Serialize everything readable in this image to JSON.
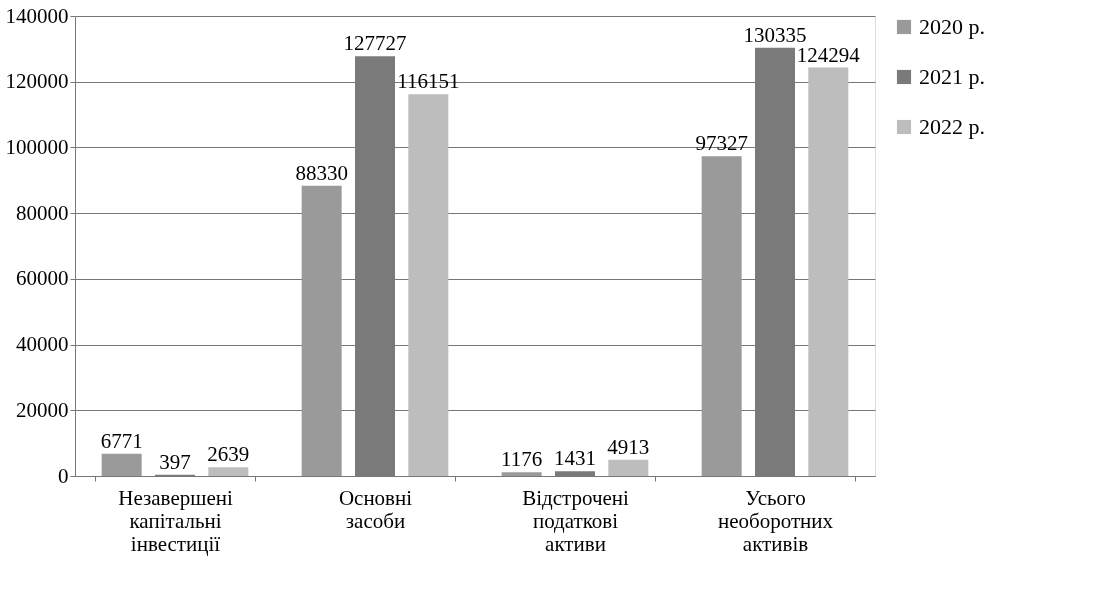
{
  "chart_data": {
    "type": "bar",
    "categories": [
      "Незавершені капітальні інвестиції",
      "Основні засоби",
      "Відстрочені податкові активи",
      "Усього необоротних активів"
    ],
    "series": [
      {
        "name": "2020 р.",
        "color": "#9a9a9a",
        "values": [
          6771,
          88330,
          1176,
          97327
        ]
      },
      {
        "name": "2021 р.",
        "color": "#7a7a7a",
        "values": [
          397,
          127727,
          1431,
          130335
        ]
      },
      {
        "name": "2022 р.",
        "color": "#bdbdbd",
        "values": [
          2639,
          116151,
          4913,
          124294
        ]
      }
    ],
    "ylim": [
      0,
      140000
    ],
    "yticks": [
      0,
      20000,
      40000,
      60000,
      80000,
      100000,
      120000,
      140000
    ],
    "grid": "y",
    "legend": "right",
    "data_labels": true
  }
}
